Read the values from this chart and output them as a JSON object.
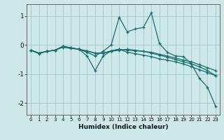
{
  "background_color": "#cce8e8",
  "grid_color": "#aacccc",
  "line_color": "#1a6e6a",
  "xlabel": "Humidex (Indice chaleur)",
  "xlim": [
    -0.5,
    23.5
  ],
  "ylim": [
    -2.4,
    1.4
  ],
  "yticks": [
    -2,
    -1,
    0,
    1
  ],
  "xticks": [
    0,
    1,
    2,
    3,
    4,
    5,
    6,
    7,
    8,
    9,
    10,
    11,
    12,
    13,
    14,
    15,
    16,
    17,
    18,
    19,
    20,
    21,
    22,
    23
  ],
  "series": [
    {
      "x": [
        0,
        1,
        2,
        3,
        4,
        5,
        6,
        7,
        8,
        9,
        10,
        11,
        12,
        13,
        14,
        15,
        16,
        17,
        18,
        19,
        20,
        21,
        22,
        23
      ],
      "y": [
        -0.18,
        -0.3,
        -0.22,
        -0.18,
        -0.05,
        -0.1,
        -0.15,
        -0.25,
        -0.38,
        -0.22,
        0.0,
        0.95,
        0.45,
        0.55,
        0.6,
        1.1,
        0.05,
        -0.25,
        -0.38,
        -0.4,
        -0.65,
        -1.15,
        -1.45,
        -2.1
      ]
    },
    {
      "x": [
        0,
        1,
        2,
        3,
        4,
        5,
        6,
        7,
        8,
        9,
        10,
        11,
        12,
        13,
        14,
        15,
        16,
        17,
        18,
        19,
        20,
        21,
        22,
        23
      ],
      "y": [
        -0.18,
        -0.28,
        -0.22,
        -0.18,
        -0.05,
        -0.1,
        -0.15,
        -0.38,
        -0.88,
        -0.38,
        -0.2,
        -0.15,
        -0.25,
        -0.3,
        -0.35,
        -0.4,
        -0.48,
        -0.52,
        -0.58,
        -0.65,
        -0.75,
        -0.85,
        -0.95,
        -1.05
      ]
    },
    {
      "x": [
        0,
        1,
        2,
        3,
        4,
        5,
        6,
        7,
        8,
        9,
        10,
        11,
        12,
        13,
        14,
        15,
        16,
        17,
        18,
        19,
        20,
        21,
        22,
        23
      ],
      "y": [
        -0.18,
        -0.28,
        -0.22,
        -0.18,
        -0.05,
        -0.1,
        -0.15,
        -0.22,
        -0.28,
        -0.28,
        -0.2,
        -0.15,
        -0.18,
        -0.2,
        -0.22,
        -0.25,
        -0.32,
        -0.38,
        -0.45,
        -0.52,
        -0.58,
        -0.68,
        -0.78,
        -0.88
      ]
    },
    {
      "x": [
        0,
        1,
        2,
        3,
        4,
        5,
        6,
        7,
        8,
        9,
        10,
        11,
        12,
        13,
        14,
        15,
        16,
        17,
        18,
        19,
        20,
        21,
        22,
        23
      ],
      "y": [
        -0.18,
        -0.28,
        -0.22,
        -0.18,
        -0.08,
        -0.12,
        -0.15,
        -0.2,
        -0.28,
        -0.28,
        -0.22,
        -0.18,
        -0.15,
        -0.18,
        -0.22,
        -0.28,
        -0.35,
        -0.42,
        -0.5,
        -0.58,
        -0.65,
        -0.75,
        -0.88,
        -1.05
      ]
    }
  ]
}
